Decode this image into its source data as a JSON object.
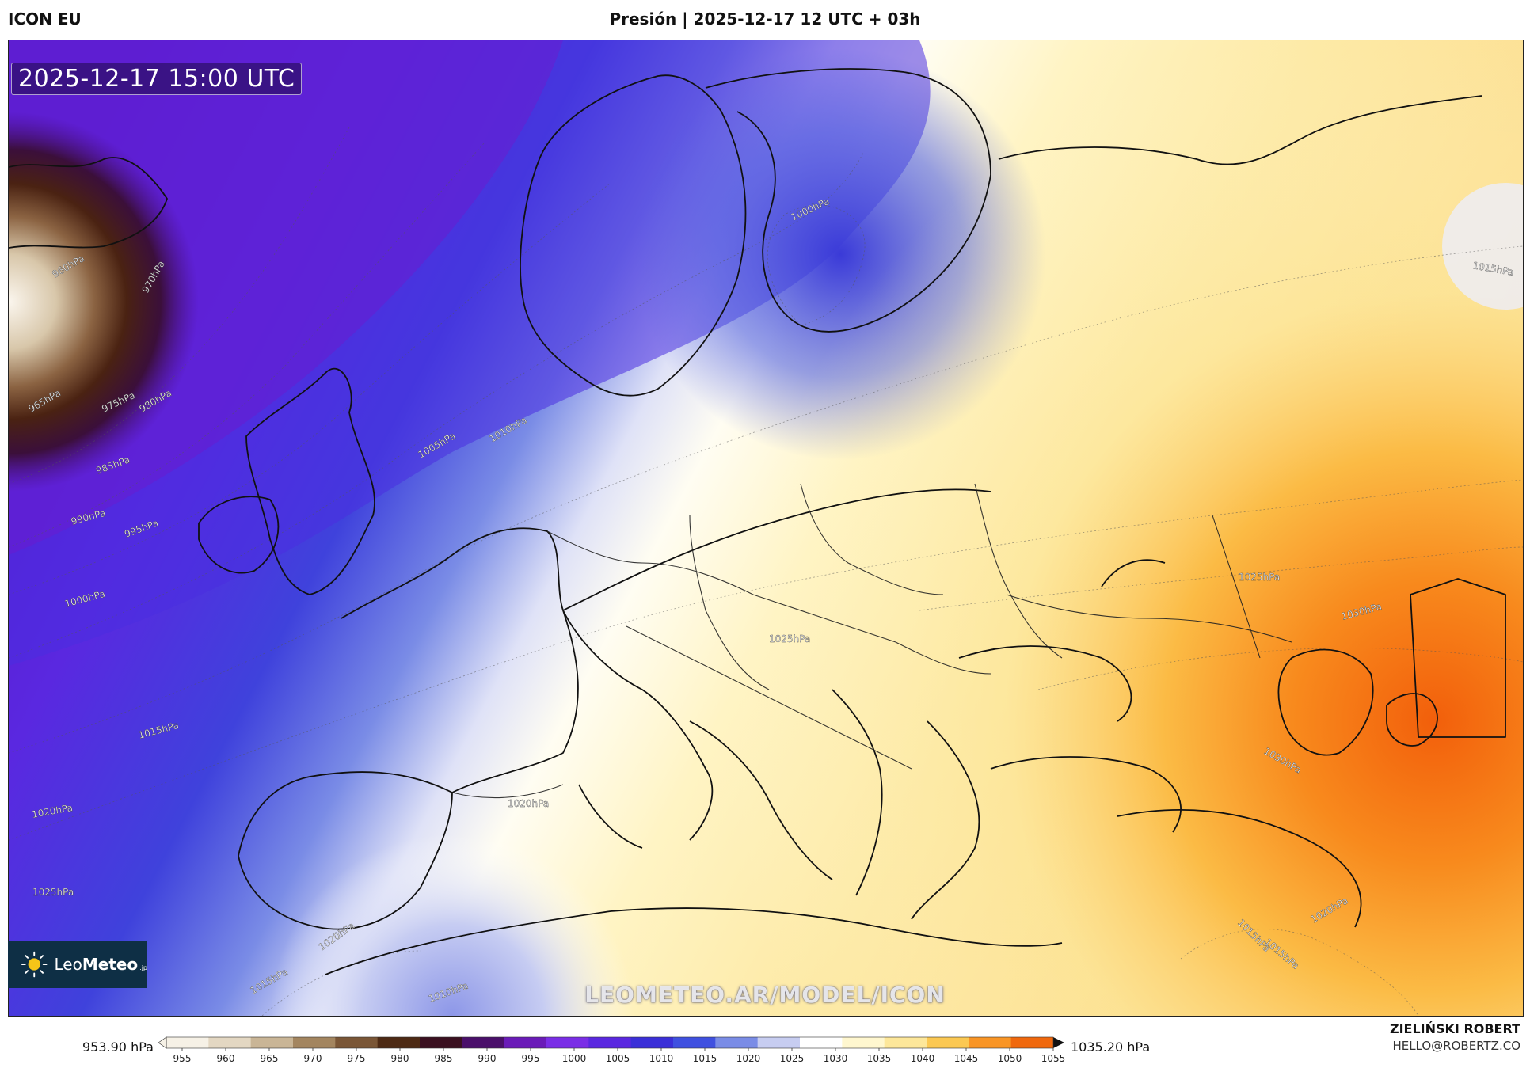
{
  "header": {
    "model_name": "ICON EU",
    "title": "Presión | 2025-12-17 12 UTC + 03h"
  },
  "map": {
    "valid_time": "2025-12-17 15:00 UTC",
    "watermark": "LEOMETEO.AR/MODEL/ICON",
    "isobar_labels": [
      {
        "text": "960hPa"
      },
      {
        "text": "965hPa"
      },
      {
        "text": "970hPa"
      },
      {
        "text": "975hPa"
      },
      {
        "text": "980hPa"
      },
      {
        "text": "985hPa"
      },
      {
        "text": "990hPa"
      },
      {
        "text": "995hPa"
      },
      {
        "text": "1000hPa"
      },
      {
        "text": "1000hPa"
      },
      {
        "text": "1005hPa"
      },
      {
        "text": "1010hPa"
      },
      {
        "text": "1015hPa"
      },
      {
        "text": "1015hPa"
      },
      {
        "text": "1020hPa"
      },
      {
        "text": "1020hPa"
      },
      {
        "text": "1025hPa"
      },
      {
        "text": "1025hPa"
      },
      {
        "text": "1025hPa"
      },
      {
        "text": "1030hPa"
      },
      {
        "text": "1030hPa"
      },
      {
        "text": "1020hPa"
      },
      {
        "text": "1015hPa"
      },
      {
        "text": "1015hPa"
      },
      {
        "text": "1020hPa"
      },
      {
        "text": "1010hPa"
      },
      {
        "text": "1015hPa"
      }
    ]
  },
  "logo": {
    "brand_light": "Leo",
    "brand_bold": "Meteo",
    "suffix": ".jp"
  },
  "colorbar": {
    "min_label": "953.90 hPa",
    "max_label": "1035.20 hPa",
    "ticks": [
      "955",
      "960",
      "965",
      "970",
      "975",
      "980",
      "985",
      "990",
      "995",
      "1000",
      "1005",
      "1010",
      "1015",
      "1020",
      "1025",
      "1030",
      "1035",
      "1040",
      "1045",
      "1050",
      "1055"
    ],
    "colors": [
      "#f6f1e6",
      "#e3d7c2",
      "#c9b596",
      "#a3855f",
      "#7a5636",
      "#4d2a14",
      "#3a1020",
      "#4a0f6a",
      "#6a1bb8",
      "#7a2ee6",
      "#5a28e0",
      "#3a2fd8",
      "#3f50e0",
      "#7a8ce6",
      "#c7cdf1",
      "#ffffff",
      "#fff7cf",
      "#fde79a",
      "#fbc852",
      "#f99525",
      "#f0680d"
    ]
  },
  "footer": {
    "author_name": "ZIELIŃSKI ROBERT",
    "author_email": "HELLO@ROBERTZ.CO"
  }
}
